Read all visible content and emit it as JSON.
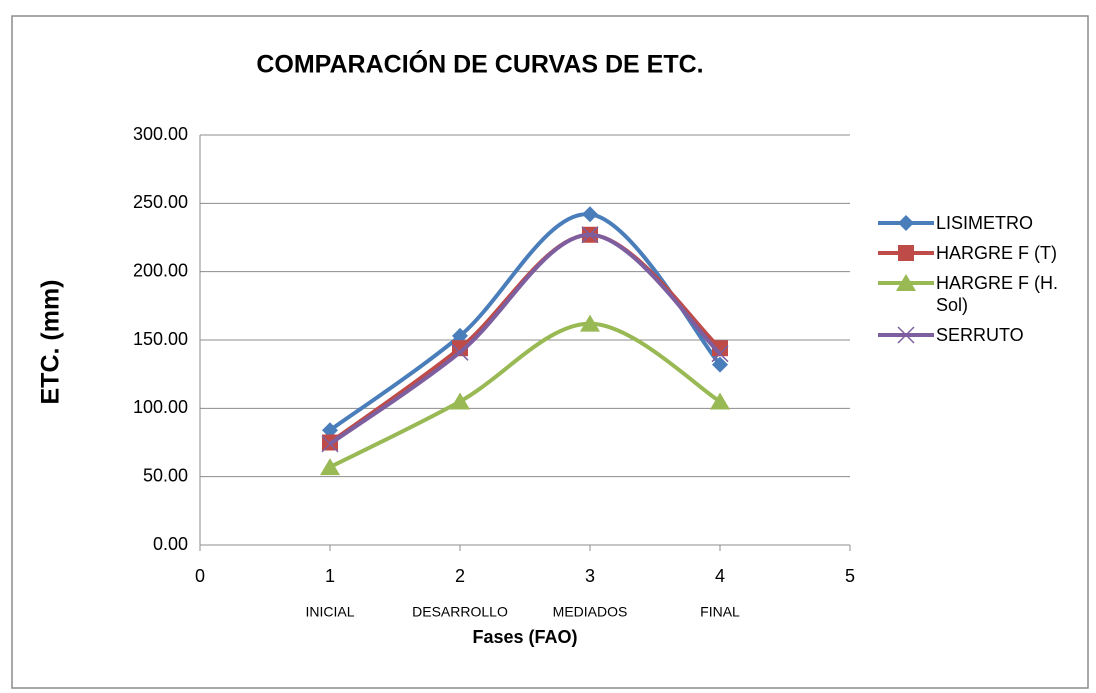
{
  "chart_data": {
    "type": "line",
    "title": "COMPARACIÓN DE CURVAS DE ETC.",
    "x_label": "Fases (FAO)",
    "y_label": "ETC. (mm)",
    "x": [
      1,
      2,
      3,
      4
    ],
    "phase_labels": [
      "INICIAL",
      "DESARROLLO",
      "MEDIADOS",
      "FINAL"
    ],
    "series": [
      {
        "name": "LISIMETRO",
        "color": "#4a7ebb",
        "marker": "diamond",
        "values": [
          84,
          153,
          242,
          132
        ]
      },
      {
        "name": "HARGRE F (T)",
        "color": "#be4b48",
        "marker": "square",
        "values": [
          75,
          144,
          227,
          144
        ]
      },
      {
        "name": "HARGRE F (H. Sol)",
        "color": "#98b954",
        "marker": "triangle",
        "values": [
          57,
          105,
          162,
          105
        ]
      },
      {
        "name": "SERRUTO",
        "color": "#7d5fa0",
        "marker": "x",
        "values": [
          74,
          141,
          227,
          140
        ]
      }
    ],
    "xlim": [
      0,
      5
    ],
    "xticks": [
      0,
      1,
      2,
      3,
      4,
      5
    ],
    "ylim": [
      0,
      300
    ],
    "yticks": [
      {
        "value": 0,
        "label": "0.00"
      },
      {
        "value": 50,
        "label": "50.00"
      },
      {
        "value": 100,
        "label": "100.00"
      },
      {
        "value": 150,
        "label": "150.00"
      },
      {
        "value": 200,
        "label": "200.00"
      },
      {
        "value": 250,
        "label": "250.00"
      },
      {
        "value": 300,
        "label": "300.00"
      }
    ],
    "grid": true,
    "smooth": true,
    "legend": "right"
  }
}
